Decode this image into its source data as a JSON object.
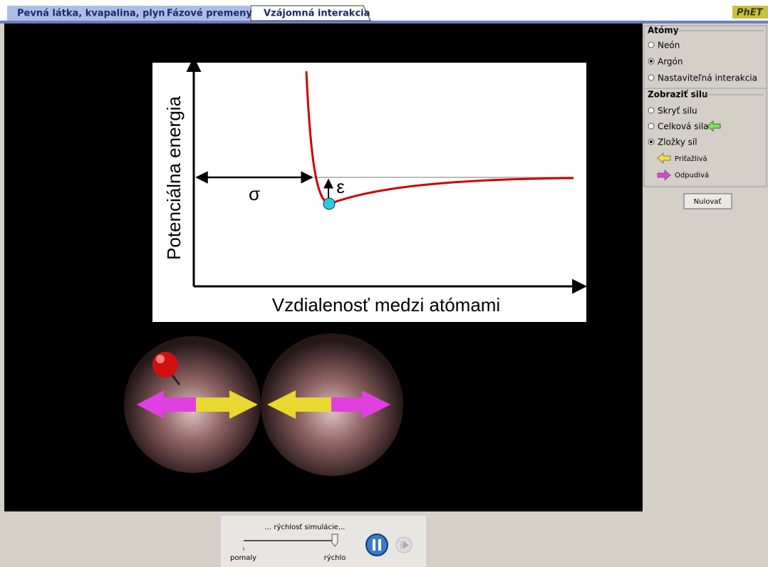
{
  "tabs": [
    "Pevná látka, kvapalina, plyn",
    "Fázové premeny",
    "Vzájomná interakcia"
  ],
  "logo": "PhET",
  "graph": {
    "y_axis_label": "Potenciálna energia",
    "x_axis_label": "Vzdialenosť medzi atómami",
    "sigma_label": "σ",
    "epsilon_label": "ε"
  },
  "control_panel": {
    "atoms": {
      "title": "Atómy",
      "options": [
        "Neón",
        "Argón",
        "Nastaviteľná interakcia"
      ]
    },
    "force": {
      "title": "Zobraziť silu",
      "options": [
        "Skryť silu",
        "Celková sila",
        "Zložky síl"
      ],
      "components": [
        "Priťažlivá",
        "Odpudivá"
      ]
    },
    "reset_button": "Nulovať"
  },
  "speed_control": {
    "label": "... rýchlosť simulácie...",
    "slow": "pomaly",
    "fast": "rýchlo"
  }
}
